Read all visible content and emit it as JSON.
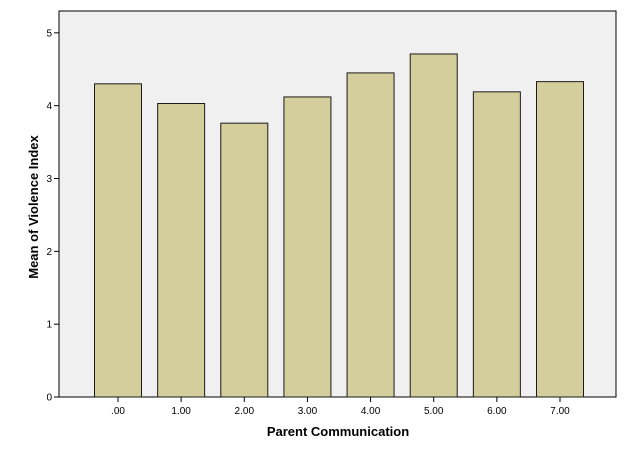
{
  "chart_data": {
    "type": "bar",
    "title": "",
    "xlabel": "Parent Communication",
    "ylabel": "Mean of Violence Index",
    "categories": [
      ".00",
      "1.00",
      "2.00",
      "3.00",
      "4.00",
      "5.00",
      "6.00",
      "7.00"
    ],
    "values": [
      4.3,
      4.03,
      3.76,
      4.12,
      4.45,
      4.71,
      4.19,
      4.33
    ],
    "ylim": [
      0,
      5.3
    ],
    "yticks": [
      "0",
      "1",
      "2",
      "3",
      "4",
      "5"
    ],
    "grid": false,
    "legend": "none",
    "colors": {
      "bar_fill": "#D3CE9C",
      "bar_stroke": "#1A1A1A",
      "plot_background": "#F0F0F0",
      "axis": "#000000"
    }
  }
}
